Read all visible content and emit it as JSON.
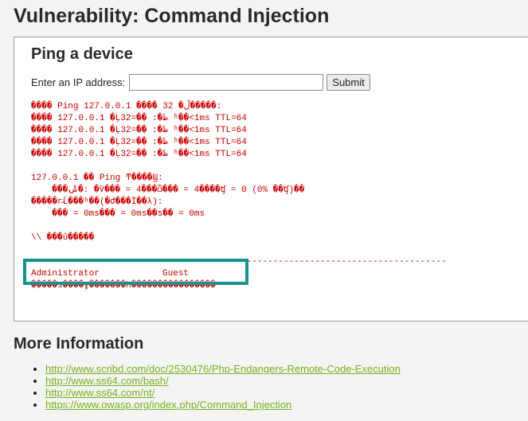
{
  "page": {
    "title": "Vulnerability: Command Injection"
  },
  "ping": {
    "heading": "Ping a device",
    "ip_label": "Enter an IP address:",
    "ip_value": "",
    "submit_label": "Submit",
    "output_lines": [
      "���� Ping 127.0.0.1 ���� 32 �ֽڵ�����:",
      "���� 127.0.0.1 �Ļظ�: �ֽ�=32 ʱ��<1ms TTL=64",
      "���� 127.0.0.1 �Ļظ�: �ֽ�=32 ʱ��<1ms TTL=64",
      "���� 127.0.0.1 �Ļظ�: �ֽ�=32 ʱ��<1ms TTL=64",
      "���� 127.0.0.1 �Ļظ�: �ֽ�=32 ʱ��<1ms TTL=64",
      "",
      "127.0.0.1 �� Ping ͳ����Ϣ:",
      "    ���ݰ�: �ѷ��� = 4���ѽ��� = 4����ʧ = 0 (0% ��ʧ)��",
      "�����г̵Ĺ���ʱ��(�Ժ���Ϊ��λ):",
      "    ��� = 0ms��� = 0ms��ƽ�� = 0ms",
      "",
      "\\\\ ���û�����",
      "",
      "-------------------------------------------------------------------------------",
      "Administrator            Guest",
      "�����ɹ����ɣ�������һ����������������"
    ]
  },
  "more_info": {
    "heading": "More Information",
    "links": [
      "http://www.scribd.com/doc/2530476/Php-Endangers-Remote-Code-Execution",
      "http://www.ss64.com/bash/",
      "http://www.ss64.com/nt/",
      "https://www.owasp.org/index.php/Command_Injection"
    ]
  },
  "colors": {
    "output_text": "#cc0000",
    "highlight_border": "#17928f",
    "link": "#7ab11f"
  }
}
